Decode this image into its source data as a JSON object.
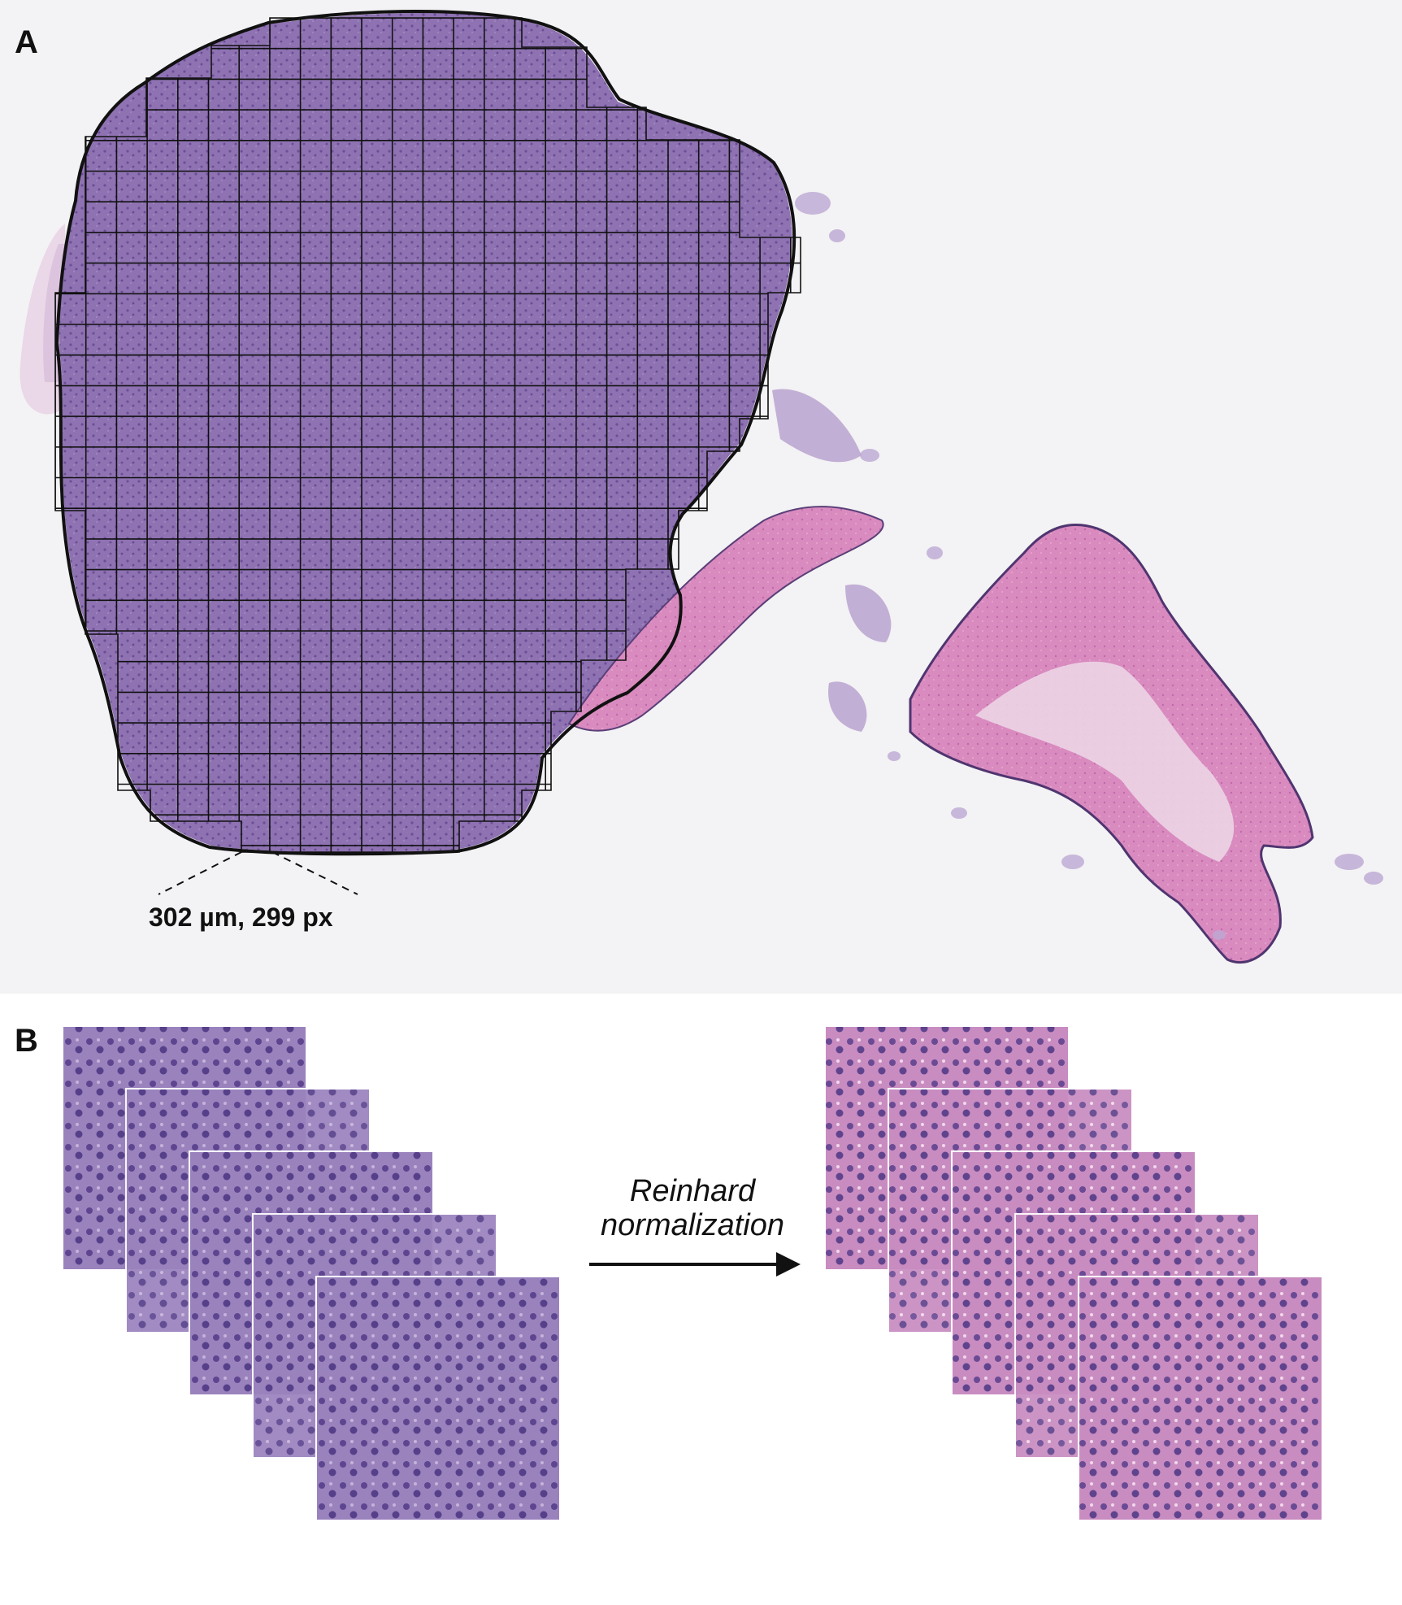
{
  "panel_a": {
    "letter": "A",
    "scale_label": "302 µm, 299 px"
  },
  "panel_b": {
    "letter": "B",
    "arrow_label_line1": "Reinhard",
    "arrow_label_line2": "normalization"
  },
  "colors": {
    "tumor_purple": "#8c6fb0",
    "stroma_pink": "#d47ab6",
    "background": "#f3f2f4",
    "grid_line": "#111111"
  }
}
